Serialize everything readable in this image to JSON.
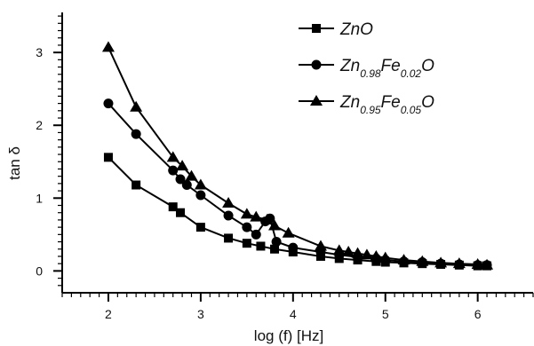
{
  "chart_data": {
    "type": "line",
    "xlabel": "log (f) [Hz]",
    "ylabel": "tan δ",
    "xlim": [
      1.5,
      6.6
    ],
    "ylim": [
      -0.3,
      3.55
    ],
    "xticks": [
      2,
      3,
      4,
      5,
      6
    ],
    "yticks": [
      0,
      1,
      2,
      3
    ],
    "xtick_labels": [
      "2",
      "3",
      "4",
      "5",
      "6"
    ],
    "ytick_labels": [
      "0",
      "1",
      "2",
      "3"
    ],
    "minor_x_step": 0.1,
    "minor_y_step": 0.1,
    "legend_position": "top-right",
    "series": [
      {
        "name": "ZnO",
        "legend": {
          "parts": [
            {
              "text": "ZnO",
              "sub": false
            }
          ]
        },
        "marker": "square",
        "x": [
          2.0,
          2.3,
          2.7,
          2.78,
          3.0,
          3.3,
          3.5,
          3.65,
          3.8,
          4.0,
          4.3,
          4.5,
          4.7,
          4.9,
          5.0,
          5.2,
          5.4,
          5.6,
          5.8,
          6.0,
          6.1
        ],
        "y": [
          1.56,
          1.18,
          0.88,
          0.8,
          0.6,
          0.45,
          0.38,
          0.34,
          0.3,
          0.26,
          0.2,
          0.17,
          0.15,
          0.13,
          0.12,
          0.11,
          0.1,
          0.09,
          0.08,
          0.07,
          0.07
        ]
      },
      {
        "name": "Zn0.98Fe0.02O",
        "legend": {
          "parts": [
            {
              "text": "Zn",
              "sub": false
            },
            {
              "text": "0.98",
              "sub": true
            },
            {
              "text": "Fe",
              "sub": false
            },
            {
              "text": "0.02",
              "sub": true
            },
            {
              "text": "O",
              "sub": false
            }
          ]
        },
        "marker": "circle",
        "x": [
          2.0,
          2.3,
          2.7,
          2.78,
          2.85,
          3.0,
          3.3,
          3.5,
          3.6,
          3.7,
          3.75,
          3.82,
          4.0,
          4.3,
          4.5,
          4.7,
          4.9,
          5.0,
          5.2,
          5.4,
          5.6,
          5.8,
          6.0,
          6.1
        ],
        "y": [
          2.3,
          1.88,
          1.38,
          1.26,
          1.18,
          1.04,
          0.76,
          0.6,
          0.5,
          0.68,
          0.72,
          0.4,
          0.32,
          0.26,
          0.22,
          0.19,
          0.17,
          0.15,
          0.13,
          0.12,
          0.1,
          0.09,
          0.08,
          0.08
        ]
      },
      {
        "name": "Zn0.95Fe0.05O",
        "legend": {
          "parts": [
            {
              "text": "Zn",
              "sub": false
            },
            {
              "text": "0.95",
              "sub": true
            },
            {
              "text": "Fe",
              "sub": false
            },
            {
              "text": "0.05",
              "sub": true
            },
            {
              "text": "O",
              "sub": false
            }
          ]
        },
        "marker": "triangle",
        "x": [
          2.0,
          2.3,
          2.7,
          2.8,
          2.9,
          3.0,
          3.3,
          3.5,
          3.6,
          3.72,
          3.8,
          3.95,
          4.3,
          4.5,
          4.6,
          4.7,
          4.8,
          4.9,
          5.0,
          5.2,
          5.4,
          5.6,
          5.8,
          6.0,
          6.1
        ],
        "y": [
          3.07,
          2.25,
          1.56,
          1.44,
          1.3,
          1.18,
          0.93,
          0.78,
          0.74,
          0.7,
          0.62,
          0.52,
          0.34,
          0.28,
          0.26,
          0.24,
          0.22,
          0.2,
          0.18,
          0.15,
          0.13,
          0.11,
          0.1,
          0.09,
          0.08
        ]
      }
    ]
  }
}
